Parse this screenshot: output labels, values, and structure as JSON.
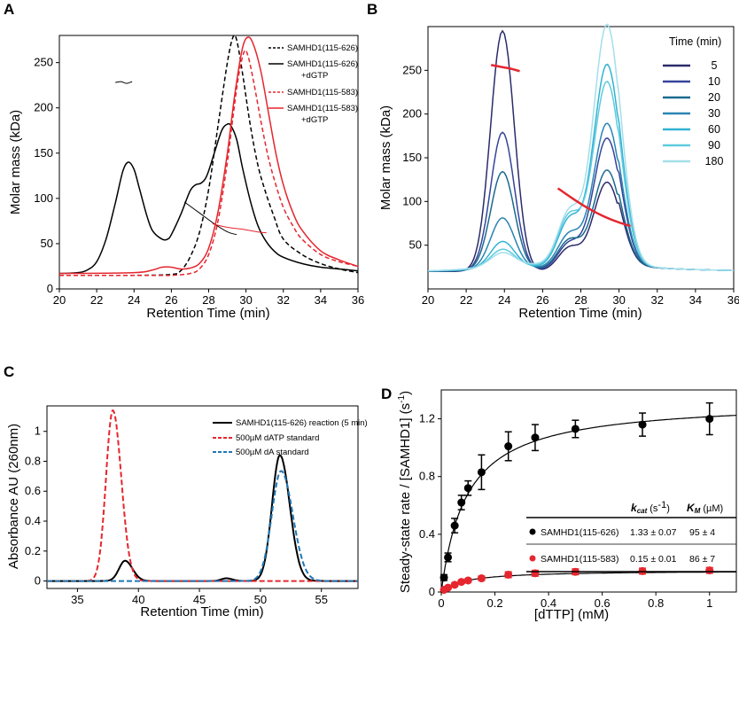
{
  "panels": {
    "A": {
      "letter": "A"
    },
    "B": {
      "letter": "B"
    },
    "C": {
      "letter": "C"
    },
    "D": {
      "letter": "D"
    }
  },
  "colors": {
    "black": "#000000",
    "red": "#e5262e",
    "blue_dash": "#1f77b4",
    "b_series": [
      "#2b2b6b",
      "#35449a",
      "#1b6a8f",
      "#2a84b3",
      "#32b3d3",
      "#5fcbe0",
      "#a3dfea"
    ]
  },
  "chart_data": [
    {
      "id": "A",
      "type": "line",
      "xlabel": "Retention Time (min)",
      "ylabel": "Molar mass (kDa)",
      "xlim": [
        20,
        36
      ],
      "ylim": [
        0,
        280
      ],
      "xticks": [
        "20",
        "22",
        "24",
        "26",
        "28",
        "30",
        "32",
        "34",
        "36"
      ],
      "yticks": [
        "0",
        "50",
        "100",
        "150",
        "200",
        "250"
      ],
      "legend_position": "top-right",
      "series": [
        {
          "name": "SAMHD1(115-626)",
          "style": "dashed",
          "color": "black",
          "x": [
            20,
            24,
            26,
            26.5,
            27,
            27.5,
            28,
            28.5,
            29,
            29.3,
            29.5,
            29.8,
            30.2,
            30.6,
            31,
            31.5,
            32,
            33,
            34,
            35,
            36
          ],
          "y": [
            15,
            15,
            16,
            20,
            35,
            62,
            110,
            180,
            250,
            278,
            275,
            240,
            185,
            140,
            110,
            80,
            55,
            38,
            28,
            22,
            18
          ]
        },
        {
          "name": "SAMHD1(115-626) +dGTP",
          "style": "solid",
          "color": "black",
          "x": [
            20,
            21,
            21.5,
            22,
            22.5,
            23,
            23.4,
            23.7,
            24,
            24.3,
            24.7,
            25,
            25.5,
            25.8,
            26,
            26.5,
            27,
            27.3,
            27.6,
            27.9,
            28.3,
            28.7,
            29,
            29.2,
            29.5,
            29.8,
            30.2,
            30.6,
            31,
            31.5,
            32,
            33,
            34,
            35,
            36
          ],
          "y": [
            17,
            18,
            21,
            30,
            55,
            95,
            130,
            140,
            132,
            110,
            80,
            64,
            55,
            55,
            60,
            82,
            108,
            115,
            117,
            125,
            150,
            175,
            182,
            180,
            165,
            135,
            100,
            72,
            55,
            42,
            35,
            28,
            24,
            22,
            20
          ]
        },
        {
          "name": "SAMHD1(115-583)",
          "style": "dashed",
          "color": "red",
          "x": [
            20,
            25,
            26,
            27,
            27.5,
            28,
            28.5,
            29,
            29.3,
            29.6,
            29.9,
            30.1,
            30.4,
            30.8,
            31.2,
            31.6,
            32,
            32.5,
            33,
            34,
            35,
            36
          ],
          "y": [
            15,
            15,
            15,
            17,
            22,
            38,
            75,
            140,
            190,
            235,
            262,
            258,
            230,
            185,
            145,
            115,
            90,
            70,
            55,
            38,
            30,
            25
          ]
        },
        {
          "name": "SAMHD1(115-583) +dGTP",
          "style": "solid",
          "color": "red",
          "x": [
            20,
            24,
            25,
            25.5,
            26,
            26.5,
            27,
            27.5,
            28,
            28.5,
            29,
            29.4,
            29.8,
            30.1,
            30.4,
            30.8,
            31.2,
            31.6,
            32,
            32.5,
            33,
            34,
            35,
            36
          ],
          "y": [
            17,
            18,
            21,
            24,
            24,
            22,
            23,
            28,
            45,
            85,
            150,
            215,
            265,
            278,
            270,
            240,
            195,
            150,
            115,
            85,
            65,
            42,
            32,
            25
          ]
        },
        {
          "name": "mass trace 1",
          "style": "thin",
          "color": "black",
          "x": [
            23.0,
            23.3,
            23.6,
            23.9
          ],
          "y": [
            228,
            229,
            227,
            229
          ]
        },
        {
          "name": "mass trace 2",
          "style": "thin",
          "color": "black",
          "x": [
            26.7,
            27.5,
            28.3,
            29.0,
            29.5
          ],
          "y": [
            96,
            84,
            72,
            63,
            60
          ]
        },
        {
          "name": "mass trace 3",
          "style": "thin",
          "color": "red",
          "x": [
            28.2,
            29.0,
            29.8,
            30.6,
            31.1
          ],
          "y": [
            72,
            68,
            66,
            63,
            62
          ]
        }
      ]
    },
    {
      "id": "B",
      "type": "line",
      "xlabel": "Retention Time (min)",
      "ylabel": "Molar mass (kDa)",
      "xlim": [
        20,
        36
      ],
      "ylim": [
        0,
        300
      ],
      "xticks": [
        "20",
        "22",
        "24",
        "26",
        "28",
        "30",
        "32",
        "34",
        "36"
      ],
      "yticks": [
        "50",
        "100",
        "150",
        "200",
        "250"
      ],
      "legend_title": "Time (min)",
      "legend_position": "top-right",
      "series": [
        {
          "name": "5",
          "peak1": 295,
          "shoulder": 68,
          "peak2": 122
        },
        {
          "name": "10",
          "peak1": 178,
          "shoulder": 75,
          "peak2": 172
        },
        {
          "name": "20",
          "peak1": 132,
          "shoulder": 80,
          "peak2": 135
        },
        {
          "name": "30",
          "peak1": 78,
          "shoulder": 90,
          "peak2": 188
        },
        {
          "name": "60",
          "peak1": 50,
          "shoulder": 118,
          "peak2": 255
        },
        {
          "name": "90",
          "peak1": 40,
          "shoulder": 125,
          "peak2": 235
        },
        {
          "name": "180",
          "peak1": 35,
          "shoulder": 130,
          "peak2": 300
        }
      ],
      "mass_traces": [
        {
          "x": [
            23.3,
            23.8,
            24.3,
            24.8
          ],
          "y": [
            256,
            254,
            252,
            249
          ]
        },
        {
          "x": [
            26.8,
            27.6,
            28.4,
            29.2,
            30.0,
            30.6
          ],
          "y": [
            115,
            103,
            92,
            83,
            76,
            72
          ]
        }
      ]
    },
    {
      "id": "C",
      "type": "line",
      "xlabel": "Retention Time (min)",
      "ylabel": "Absorbance AU (260nm)",
      "xlim": [
        32.5,
        58
      ],
      "ylim": [
        -0.05,
        1.17
      ],
      "xticks": [
        "35",
        "40",
        "45",
        "50",
        "55"
      ],
      "yticks": [
        "0",
        "0.2",
        "0.4",
        "0.6",
        "0.8",
        "1"
      ],
      "legend_position": "top-right",
      "series": [
        {
          "name": "SAMHD1(115-626) reaction (5 min)",
          "style": "solid",
          "color": "black",
          "peaks": [
            {
              "x0": 38.9,
              "h": 0.135,
              "w": 0.55
            },
            {
              "x0": 47.2,
              "h": 0.018,
              "w": 0.45
            },
            {
              "x0": 51.6,
              "h": 0.84,
              "w": 0.72
            }
          ]
        },
        {
          "name": "500µM dATP standard",
          "style": "dashed",
          "color": "red",
          "peaks": [
            {
              "x0": 37.9,
              "h": 1.14,
              "w": 0.62
            }
          ]
        },
        {
          "name": "500µM dA standard",
          "style": "dashed",
          "color": "blue",
          "peaks": [
            {
              "x0": 51.7,
              "h": 0.735,
              "w": 0.85
            }
          ]
        }
      ]
    },
    {
      "id": "D",
      "type": "scatter",
      "xlabel": "[dTTP] (mM)",
      "ylabel": "Steady-state rate / [SAMHD1] (s",
      "ylabel_sup": "-1",
      "ylabel_end": ")",
      "xlim": [
        0,
        1.1
      ],
      "ylim": [
        0,
        1.4
      ],
      "xticks": [
        "0",
        "0.2",
        "0.4",
        "0.6",
        "0.8",
        "1"
      ],
      "yticks": [
        "0",
        "0.4",
        "0.8",
        "1.2"
      ],
      "table": {
        "kcat_symbol": "k",
        "kcat_sub": "cat",
        "kcat_unit_pre": "(s",
        "kcat_unit_sup": "-1",
        "kcat_unit_post": ")",
        "km_symbol": "K",
        "km_sub": "M",
        "km_unit": "(µM)",
        "rows": [
          {
            "label": "SAMHD1(115-626)",
            "kcat": "1.33 ± 0.07",
            "km": "95 ± 4"
          },
          {
            "label": "SAMHD1(115-583)",
            "kcat": "0.15 ± 0.01",
            "km": "86 ± 7"
          }
        ]
      },
      "series": [
        {
          "name": "SAMHD1(115-626)",
          "color": "black",
          "vmax": 1.33,
          "km_mM": 0.095,
          "x": [
            0.01,
            0.025,
            0.05,
            0.075,
            0.1,
            0.15,
            0.25,
            0.35,
            0.5,
            0.75,
            1.0
          ],
          "y": [
            0.1,
            0.24,
            0.46,
            0.62,
            0.72,
            0.83,
            1.01,
            1.07,
            1.13,
            1.16,
            1.2
          ],
          "err": [
            0.02,
            0.03,
            0.05,
            0.05,
            0.05,
            0.12,
            0.1,
            0.09,
            0.06,
            0.08,
            0.11
          ]
        },
        {
          "name": "SAMHD1(115-583)",
          "color": "red",
          "vmax": 0.15,
          "km_mM": 0.086,
          "x": [
            0.01,
            0.025,
            0.05,
            0.075,
            0.1,
            0.15,
            0.25,
            0.35,
            0.5,
            0.75,
            1.0
          ],
          "y": [
            0.015,
            0.03,
            0.05,
            0.07,
            0.08,
            0.095,
            0.12,
            0.13,
            0.14,
            0.145,
            0.15
          ],
          "err": [
            0.005,
            0.008,
            0.01,
            0.01,
            0.012,
            0.015,
            0.02,
            0.02,
            0.02,
            0.02,
            0.02
          ]
        }
      ]
    }
  ]
}
